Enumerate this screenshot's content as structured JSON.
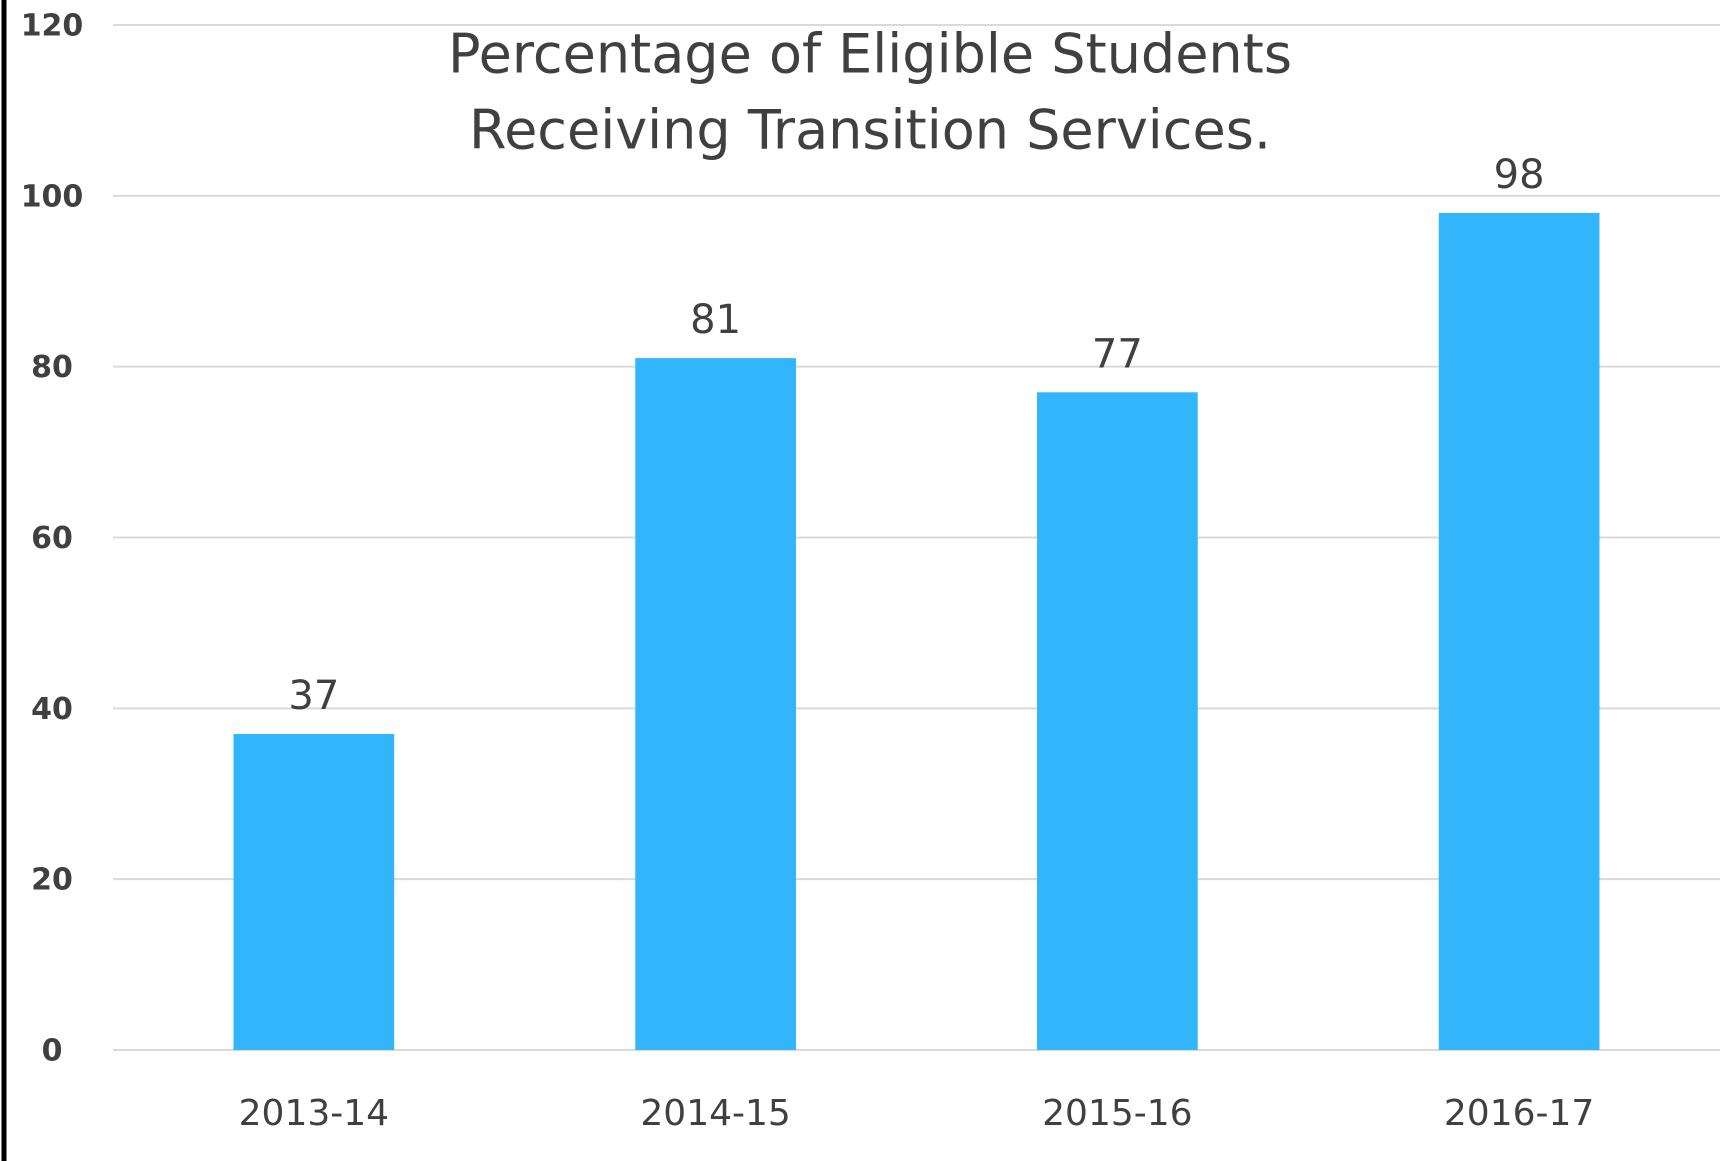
{
  "chart_data": {
    "type": "bar",
    "title": [
      "Percentage of Eligible Students",
      "Receiving Transition Services."
    ],
    "categories": [
      "2013-14",
      "2014-15",
      "2015-16",
      "2016-17"
    ],
    "values": [
      37,
      81,
      77,
      98
    ],
    "color": "#33b5fb",
    "ylim": [
      0,
      120
    ],
    "yticks": [
      0,
      20,
      40,
      60,
      80,
      100,
      120
    ],
    "grid": true
  }
}
